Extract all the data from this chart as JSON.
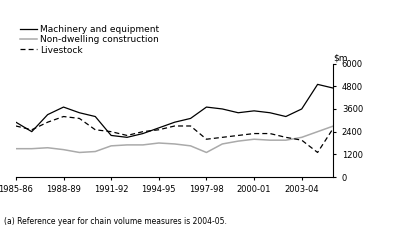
{
  "years": [
    1985,
    1986,
    1987,
    1988,
    1989,
    1990,
    1991,
    1992,
    1993,
    1994,
    1995,
    1996,
    1997,
    1998,
    1999,
    2000,
    2001,
    2002,
    2003,
    2004,
    2005
  ],
  "xlabels": [
    "1985-86",
    "1988-89",
    "1991-92",
    "1994-95",
    "1997-98",
    "2000-01",
    "2003-04"
  ],
  "xtick_pos": [
    0,
    3,
    6,
    9,
    12,
    15,
    18
  ],
  "machinery": [
    2900,
    2400,
    3300,
    3700,
    3400,
    3200,
    2200,
    2100,
    2300,
    2600,
    2900,
    3100,
    3700,
    3600,
    3400,
    3500,
    3400,
    3200,
    3600,
    4900,
    4700
  ],
  "non_dwelling": [
    1500,
    1500,
    1550,
    1450,
    1300,
    1350,
    1650,
    1700,
    1700,
    1800,
    1750,
    1650,
    1300,
    1750,
    1900,
    2000,
    1950,
    1950,
    2100,
    2400,
    2700
  ],
  "livestock": [
    2700,
    2500,
    2900,
    3200,
    3100,
    2500,
    2400,
    2200,
    2400,
    2500,
    2700,
    2700,
    2000,
    2100,
    2200,
    2300,
    2300,
    2100,
    1950,
    1300,
    2600
  ],
  "machinery_color": "#000000",
  "non_dwelling_color": "#aaaaaa",
  "livestock_color": "#000000",
  "ylim": [
    0,
    6000
  ],
  "yticks": [
    0,
    1200,
    2400,
    3600,
    4800,
    6000
  ],
  "footnote": "(a) Reference year for chain volume measures is 2004-05.",
  "legend_labels": [
    "Machinery and equipment",
    "Non-dwelling construction",
    "Livestock"
  ],
  "background_color": "#ffffff"
}
